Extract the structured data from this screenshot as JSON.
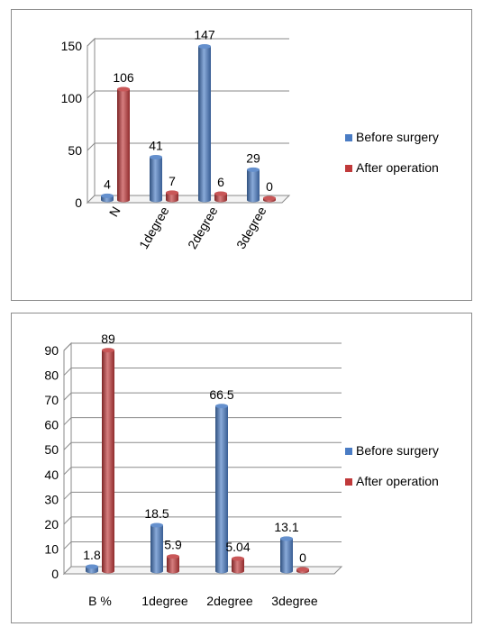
{
  "chart_data": [
    {
      "type": "bar",
      "title": "",
      "xlabel": "",
      "ylabel": "",
      "categories": [
        "N",
        "1degree",
        "2degree",
        "3degree"
      ],
      "series": [
        {
          "name": "Before surgery",
          "values": [
            4,
            41,
            147,
            29
          ],
          "labels": [
            "4",
            "41",
            "147",
            "29"
          ],
          "color": "#4a7cc4"
        },
        {
          "name": "After operation",
          "values": [
            106,
            7,
            6,
            0
          ],
          "labels": [
            "106",
            "7",
            "6",
            "0"
          ],
          "color": "#c0393a"
        }
      ],
      "ylim": [
        0,
        150
      ],
      "yticks": [
        "0",
        "50",
        "100",
        "150"
      ],
      "category_label_rotation": "rotated",
      "grid": true,
      "legend": "right"
    },
    {
      "type": "bar",
      "title": "",
      "xlabel": "",
      "ylabel": "",
      "categories": [
        "B %",
        "1degree",
        "2degree",
        "3degree"
      ],
      "series": [
        {
          "name": "Before surgery",
          "values": [
            1.8,
            18.5,
            66.5,
            13.1
          ],
          "labels": [
            "1.8",
            "18.5",
            "66.5",
            "13.1"
          ],
          "color": "#4a7cc4"
        },
        {
          "name": "After operation",
          "values": [
            89,
            5.9,
            5.04,
            0
          ],
          "labels": [
            "89",
            "5.9",
            "5.04",
            "0"
          ],
          "color": "#c0393a"
        }
      ],
      "ylim": [
        0,
        90
      ],
      "yticks": [
        "0",
        "10",
        "20",
        "30",
        "40",
        "50",
        "60",
        "70",
        "80",
        "90"
      ],
      "category_label_rotation": "horizontal",
      "grid": true,
      "legend": "right"
    }
  ]
}
